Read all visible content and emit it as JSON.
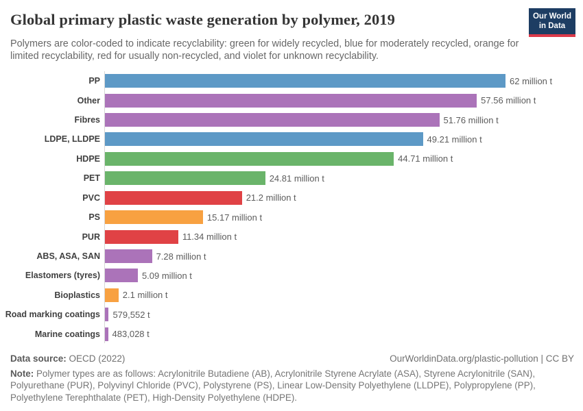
{
  "header": {
    "title": "Global primary plastic waste generation by polymer, 2019",
    "subtitle": "Polymers are color-coded to indicate recyclability: green for widely recycled, blue for moderately recycled, orange for limited recyclability, red for usually non-recycled, and violet for unknown recyclability.",
    "logo": {
      "line1": "Our World",
      "line2": "in Data",
      "bg_color": "#1d3d63",
      "accent_color": "#dc3a4a"
    }
  },
  "chart_data": {
    "type": "bar",
    "orientation": "horizontal",
    "title": "Global primary plastic waste generation by polymer, 2019",
    "xlabel": "",
    "ylabel": "",
    "unit": "million tonnes",
    "xlim": [
      0,
      62
    ],
    "grid": false,
    "legend": "none",
    "color_legend": {
      "green": "widely recycled",
      "blue": "moderately recycled",
      "orange": "limited recyclability",
      "red": "usually non-recycled",
      "violet": "unknown recyclability"
    },
    "colors": {
      "blue": "#5d99c6",
      "violet": "#ab73b9",
      "green": "#6ab46a",
      "red": "#e04245",
      "orange": "#f8a141"
    },
    "bars": [
      {
        "label": "PP",
        "value": 62,
        "value_label": "62 million t",
        "color_key": "blue"
      },
      {
        "label": "Other",
        "value": 57.56,
        "value_label": "57.56 million t",
        "color_key": "violet"
      },
      {
        "label": "Fibres",
        "value": 51.76,
        "value_label": "51.76 million t",
        "color_key": "violet"
      },
      {
        "label": "LDPE, LLDPE",
        "value": 49.21,
        "value_label": "49.21 million t",
        "color_key": "blue"
      },
      {
        "label": "HDPE",
        "value": 44.71,
        "value_label": "44.71 million t",
        "color_key": "green"
      },
      {
        "label": "PET",
        "value": 24.81,
        "value_label": "24.81 million t",
        "color_key": "green"
      },
      {
        "label": "PVC",
        "value": 21.2,
        "value_label": "21.2 million t",
        "color_key": "red"
      },
      {
        "label": "PS",
        "value": 15.17,
        "value_label": "15.17 million t",
        "color_key": "orange"
      },
      {
        "label": "PUR",
        "value": 11.34,
        "value_label": "11.34 million t",
        "color_key": "red"
      },
      {
        "label": "ABS, ASA, SAN",
        "value": 7.28,
        "value_label": "7.28 million t",
        "color_key": "violet"
      },
      {
        "label": "Elastomers (tyres)",
        "value": 5.09,
        "value_label": "5.09 million t",
        "color_key": "violet"
      },
      {
        "label": "Bioplastics",
        "value": 2.1,
        "value_label": "2.1 million t",
        "color_key": "orange"
      },
      {
        "label": "Road marking coatings",
        "value": 0.579552,
        "value_label": "579,552 t",
        "color_key": "violet"
      },
      {
        "label": "Marine coatings",
        "value": 0.483028,
        "value_label": "483,028 t",
        "color_key": "violet"
      }
    ]
  },
  "footer": {
    "source_label": "Data source:",
    "source_value": "OECD (2022)",
    "attribution": "OurWorldinData.org/plastic-pollution | CC BY",
    "note_label": "Note:",
    "note_text": "Polymer types are as follows: Acrylonitrile Butadiene (AB), Acrylonitrile Styrene Acrylate (ASA), Styrene Acrylonitrile (SAN), Polyurethane (PUR), Polyvinyl Chloride (PVC), Polystyrene (PS), Linear Low-Density Polyethylene (LLDPE), Polypropylene (PP), Polyethylene Terephthalate (PET), High-Density Polyethylene (HDPE)."
  }
}
